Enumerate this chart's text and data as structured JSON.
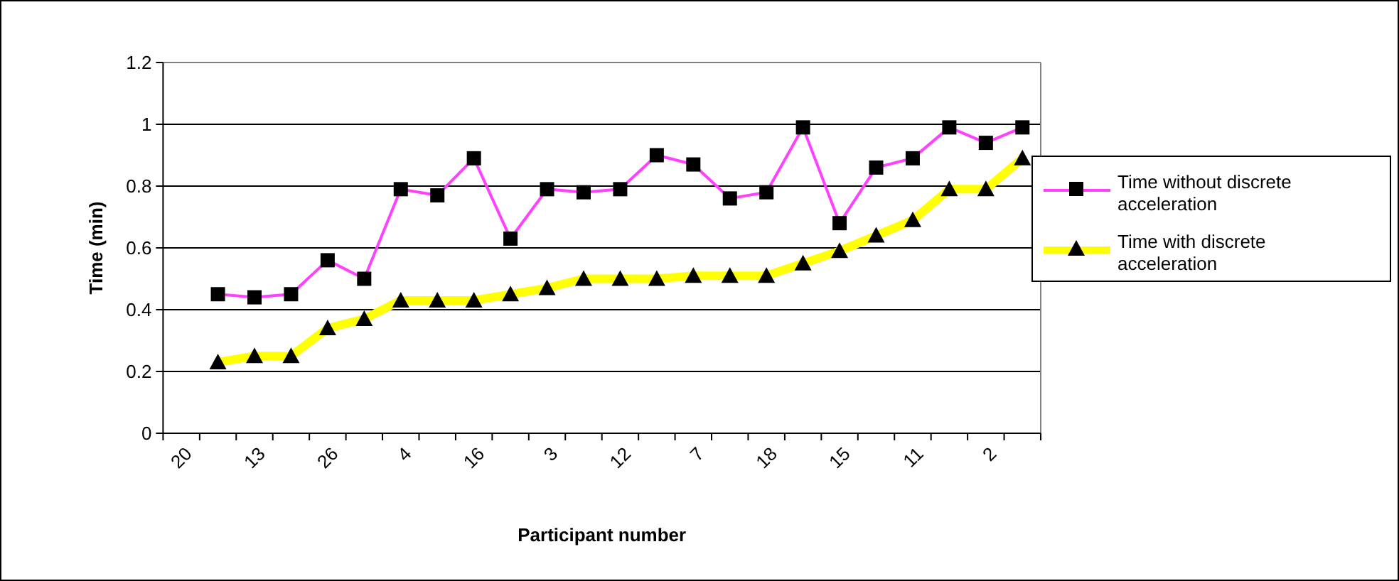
{
  "chart_data": {
    "type": "line",
    "xlabel": "Participant number",
    "ylabel": "Time (min)",
    "categories": [
      "20",
      null,
      "13",
      null,
      "26",
      null,
      "4",
      null,
      "16",
      null,
      "3",
      null,
      "12",
      null,
      "7",
      null,
      "18",
      null,
      "15",
      null,
      "11",
      null,
      "2",
      null
    ],
    "series": [
      {
        "name": "Time without discrete acceleration",
        "color": "#ff40ff",
        "marker": "square",
        "values": [
          null,
          0.45,
          0.44,
          0.45,
          0.56,
          0.5,
          0.79,
          0.77,
          0.89,
          0.63,
          0.79,
          0.78,
          0.79,
          0.9,
          0.87,
          0.76,
          0.78,
          0.99,
          0.68,
          0.86,
          0.89,
          0.99,
          0.94,
          0.99
        ]
      },
      {
        "name": "Time with discrete acceleration",
        "color": "#ffff00",
        "marker": "triangle",
        "values": [
          null,
          0.23,
          0.25,
          0.25,
          0.34,
          0.37,
          0.43,
          0.43,
          0.43,
          0.45,
          0.47,
          0.5,
          0.5,
          0.5,
          0.51,
          0.51,
          0.51,
          0.55,
          0.59,
          0.64,
          0.69,
          0.79,
          0.79,
          0.89
        ]
      }
    ],
    "ylim": [
      0,
      1.2
    ],
    "yticks": [
      0,
      {
        "value": 0.2,
        "label": "0.2"
      },
      {
        "value": 0.4,
        "label": "0.4"
      },
      {
        "value": 0.6,
        "label": "0.6"
      },
      {
        "value": 0.8,
        "label": "0.8"
      },
      1,
      {
        "value": 1.2,
        "label": "1.2"
      }
    ],
    "grid": "y",
    "legend": "right"
  }
}
